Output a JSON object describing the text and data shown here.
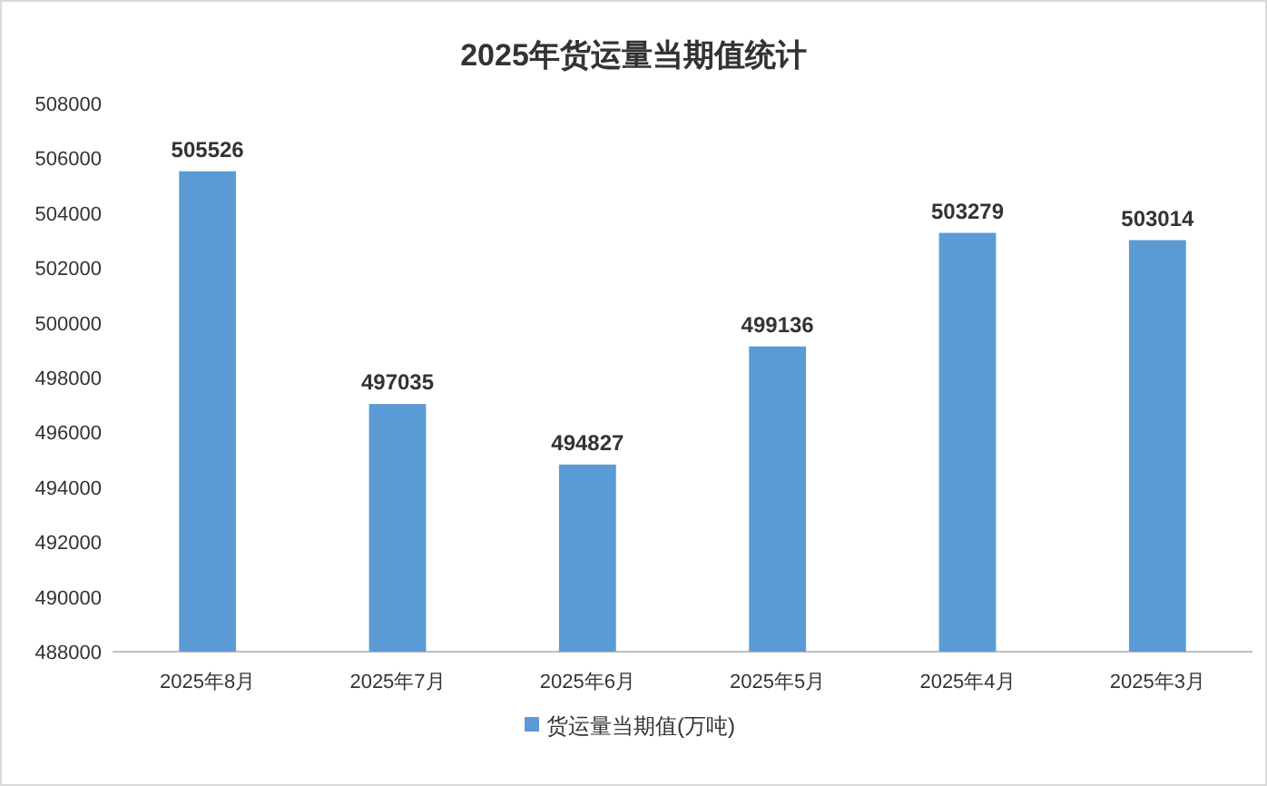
{
  "chart_data": {
    "type": "bar",
    "title": "2025年货运量当期值统计",
    "categories": [
      "2025年8月",
      "2025年7月",
      "2025年6月",
      "2025年5月",
      "2025年4月",
      "2025年3月"
    ],
    "series": [
      {
        "name": "货运量当期值(万吨)",
        "color": "#5b9bd5",
        "values": [
          505526,
          497035,
          494827,
          499136,
          503279,
          503014
        ]
      }
    ],
    "ylim": [
      488000,
      508000
    ],
    "yticks": [
      488000,
      490000,
      492000,
      494000,
      496000,
      498000,
      500000,
      502000,
      504000,
      506000,
      508000
    ],
    "data_labels": true,
    "legend": "bottom",
    "grid": false
  }
}
